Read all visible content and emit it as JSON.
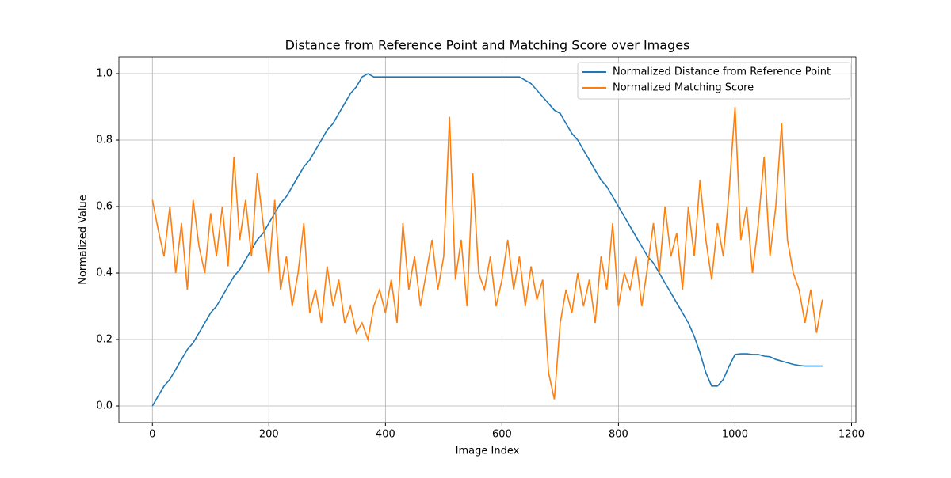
{
  "chart_data": {
    "type": "line",
    "title": "Distance from Reference Point and Matching Score over Images",
    "xlabel": "Image Index",
    "ylabel": "Normalized Value",
    "x": [
      0,
      10,
      20,
      30,
      40,
      50,
      60,
      70,
      80,
      90,
      100,
      110,
      120,
      130,
      140,
      150,
      160,
      170,
      180,
      190,
      200,
      210,
      220,
      230,
      240,
      250,
      260,
      270,
      280,
      290,
      300,
      310,
      320,
      330,
      340,
      350,
      360,
      370,
      380,
      390,
      400,
      410,
      420,
      430,
      440,
      450,
      460,
      470,
      480,
      490,
      500,
      510,
      520,
      530,
      540,
      550,
      560,
      570,
      580,
      590,
      600,
      610,
      620,
      630,
      640,
      650,
      660,
      670,
      680,
      690,
      700,
      710,
      720,
      730,
      740,
      750,
      760,
      770,
      780,
      790,
      800,
      810,
      820,
      830,
      840,
      850,
      860,
      870,
      880,
      890,
      900,
      910,
      920,
      930,
      940,
      950,
      960,
      970,
      980,
      990,
      1000,
      1010,
      1020,
      1030,
      1040,
      1050,
      1060,
      1070,
      1080,
      1090,
      1100,
      1110,
      1120,
      1130,
      1140,
      1150
    ],
    "series": [
      {
        "name": "Normalized Distance from Reference Point",
        "color": "#1f77b4",
        "values": [
          0,
          0.03,
          0.06,
          0.08,
          0.11,
          0.14,
          0.17,
          0.19,
          0.22,
          0.25,
          0.28,
          0.3,
          0.33,
          0.36,
          0.39,
          0.41,
          0.44,
          0.47,
          0.5,
          0.52,
          0.55,
          0.58,
          0.61,
          0.63,
          0.66,
          0.69,
          0.72,
          0.74,
          0.77,
          0.8,
          0.83,
          0.85,
          0.88,
          0.91,
          0.94,
          0.96,
          0.99,
          1.0,
          0.99,
          0.99,
          0.99,
          0.99,
          0.99,
          0.99,
          0.99,
          0.99,
          0.99,
          0.99,
          0.99,
          0.99,
          0.99,
          0.99,
          0.99,
          0.99,
          0.99,
          0.99,
          0.99,
          0.99,
          0.99,
          0.99,
          0.99,
          0.99,
          0.99,
          0.99,
          0.98,
          0.97,
          0.95,
          0.93,
          0.91,
          0.89,
          0.88,
          0.85,
          0.82,
          0.8,
          0.77,
          0.74,
          0.71,
          0.68,
          0.66,
          0.63,
          0.6,
          0.57,
          0.54,
          0.51,
          0.48,
          0.45,
          0.43,
          0.4,
          0.37,
          0.34,
          0.31,
          0.28,
          0.25,
          0.21,
          0.16,
          0.1,
          0.06,
          0.06,
          0.08,
          0.12,
          0.155,
          0.157,
          0.157,
          0.155,
          0.155,
          0.15,
          0.148,
          0.14,
          0.135,
          0.13,
          0.125,
          0.122,
          0.12,
          0.12,
          0.12,
          0.12
        ]
      },
      {
        "name": "Normalized Matching Score",
        "color": "#ff7f0e",
        "values": [
          0.62,
          0.53,
          0.45,
          0.6,
          0.4,
          0.55,
          0.35,
          0.62,
          0.48,
          0.4,
          0.58,
          0.45,
          0.6,
          0.42,
          0.75,
          0.5,
          0.62,
          0.45,
          0.7,
          0.55,
          0.4,
          0.62,
          0.35,
          0.45,
          0.3,
          0.4,
          0.55,
          0.28,
          0.35,
          0.25,
          0.42,
          0.3,
          0.38,
          0.25,
          0.3,
          0.22,
          0.25,
          0.2,
          0.3,
          0.35,
          0.28,
          0.38,
          0.25,
          0.55,
          0.35,
          0.45,
          0.3,
          0.4,
          0.5,
          0.35,
          0.45,
          0.87,
          0.38,
          0.5,
          0.3,
          0.7,
          0.4,
          0.35,
          0.45,
          0.3,
          0.38,
          0.5,
          0.35,
          0.45,
          0.3,
          0.42,
          0.32,
          0.38,
          0.1,
          0.02,
          0.25,
          0.35,
          0.28,
          0.4,
          0.3,
          0.38,
          0.25,
          0.45,
          0.35,
          0.55,
          0.3,
          0.4,
          0.35,
          0.45,
          0.3,
          0.42,
          0.55,
          0.4,
          0.6,
          0.45,
          0.52,
          0.35,
          0.6,
          0.45,
          0.68,
          0.5,
          0.38,
          0.55,
          0.45,
          0.65,
          0.9,
          0.5,
          0.6,
          0.4,
          0.55,
          0.75,
          0.45,
          0.6,
          0.85,
          0.5,
          0.4,
          0.35,
          0.25,
          0.35,
          0.22,
          0.32
        ]
      }
    ],
    "xlim": [
      -57.5,
      1207.5
    ],
    "xticks": [
      0,
      200,
      400,
      600,
      800,
      1000,
      1200
    ],
    "ylim": [
      -0.05,
      1.05
    ],
    "yticks": [
      {
        "value": 0,
        "label": "0.0"
      },
      0.2,
      0.4,
      0.6,
      0.8,
      {
        "value": 1,
        "label": "1.0"
      }
    ],
    "grid": true,
    "legend": "upper right"
  }
}
